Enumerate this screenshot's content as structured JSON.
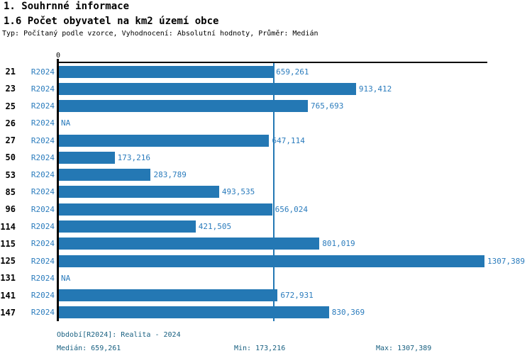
{
  "header": {
    "title": "1. Souhrnné informace",
    "subtitle": "1.6 Počet obyvatel na km2 území obce",
    "meta": "Typ: Počítaný podle vzorce, Vyhodnocení: Absolutní hodnoty, Průměr: Medián"
  },
  "chart_data": {
    "type": "bar",
    "orientation": "horizontal",
    "title": "1.6 Počet obyvatel na km2 území obce",
    "categories": [
      "21",
      "23",
      "25",
      "26",
      "27",
      "50",
      "53",
      "85",
      "96",
      "114",
      "115",
      "125",
      "131",
      "141",
      "147"
    ],
    "series": [
      {
        "name": "R2024",
        "values": [
          659.261,
          913.412,
          765.693,
          null,
          647.114,
          173.216,
          283.789,
          493.535,
          656.024,
          421.505,
          801.019,
          1307.389,
          null,
          672.931,
          830.369
        ]
      }
    ],
    "value_labels": [
      "659,261",
      "913,412",
      "765,693",
      "NA",
      "647,114",
      "173,216",
      "283,789",
      "493,535",
      "656,024",
      "421,505",
      "801,019",
      "1307,389",
      "NA",
      "672,931",
      "830,369"
    ],
    "na_label": "NA",
    "axis": {
      "zero_label": "0",
      "xmin": 0,
      "xmax": 1316
    },
    "median_value": 659.261,
    "legend_position": "none",
    "grid": false,
    "colors": {
      "bar": "#2478b4",
      "text_blue": "#2b7cbd",
      "footer_text": "#175f80",
      "axis": "#000000"
    }
  },
  "footer": {
    "period": "Období[R2024]: Realita - 2024",
    "median": "Medián: 659,261",
    "min": "Min: 173,216",
    "max": "Max: 1307,389"
  }
}
